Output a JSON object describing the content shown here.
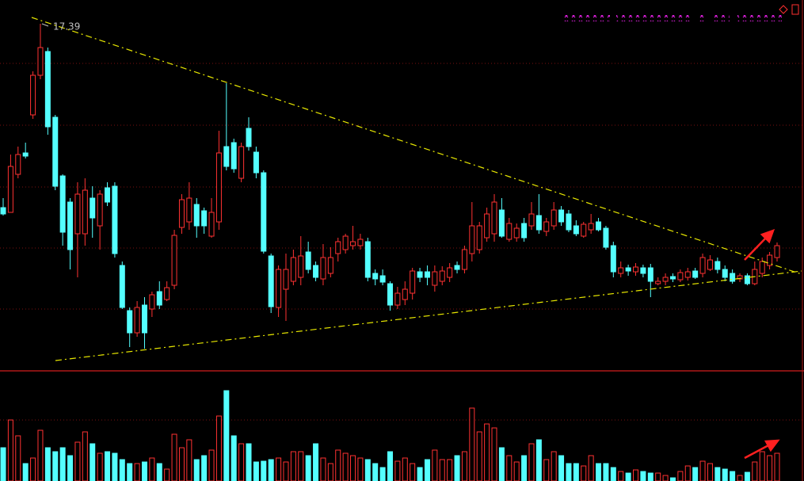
{
  "chart_data": {
    "type": "candlestick",
    "high_label": 17.39,
    "up_color": "#ff3232",
    "down_color": "#54ffff",
    "ylim": [
      13.04,
      17.69
    ],
    "volume_ylim": [
      0,
      117
    ],
    "open": [
      15.07,
      15.01,
      15.49,
      15.76,
      16.24,
      16.74,
      17.04,
      16.21,
      15.47,
      15.14,
      14.74,
      14.74,
      15.19,
      14.84,
      15.32,
      15.34,
      14.34,
      13.77,
      13.49,
      13.84,
      13.79,
      14.01,
      13.91,
      14.09,
      14.82,
      14.89,
      15.11,
      15.03,
      14.71,
      14.89,
      15.84,
      15.89,
      15.44,
      16.07,
      15.77,
      15.51,
      14.46,
      13.81,
      14.04,
      14.14,
      14.19,
      14.51,
      14.34,
      14.17,
      14.24,
      14.49,
      14.54,
      14.59,
      14.59,
      14.64,
      14.24,
      14.21,
      14.11,
      13.84,
      13.91,
      13.99,
      14.26,
      14.26,
      14.09,
      14.14,
      14.19,
      14.34,
      14.29,
      14.49,
      14.54,
      14.69,
      14.74,
      15.04,
      14.67,
      14.69,
      14.87,
      14.84,
      14.97,
      14.77,
      14.84,
      15.04,
      14.99,
      14.84,
      14.71,
      14.79,
      14.89,
      14.81,
      14.59,
      14.24,
      14.31,
      14.26,
      14.31,
      14.31,
      14.11,
      14.14,
      14.2,
      14.16,
      14.19,
      14.27,
      14.24,
      14.29,
      14.39,
      14.29,
      14.24,
      14.17,
      14.21,
      14.11,
      14.24,
      14.34,
      14.44
    ],
    "high": [
      15.19,
      15.74,
      15.84,
      15.89,
      16.79,
      17.39,
      17.09,
      16.24,
      15.49,
      15.19,
      15.39,
      15.44,
      15.34,
      15.29,
      15.39,
      15.39,
      14.39,
      13.81,
      13.89,
      13.94,
      14.01,
      14.14,
      14.14,
      14.79,
      15.24,
      15.39,
      15.19,
      15.07,
      15.19,
      16.04,
      16.64,
      15.94,
      15.89,
      16.21,
      15.84,
      15.54,
      14.49,
      14.34,
      14.49,
      14.54,
      14.71,
      14.64,
      14.39,
      14.61,
      14.57,
      14.69,
      14.74,
      14.84,
      14.74,
      14.69,
      14.29,
      14.29,
      14.14,
      14.07,
      14.14,
      14.31,
      14.31,
      14.34,
      14.34,
      14.33,
      14.37,
      14.39,
      14.59,
      15.14,
      14.89,
      15.07,
      15.24,
      15.19,
      14.94,
      14.87,
      14.94,
      15.14,
      15.24,
      14.94,
      15.14,
      15.09,
      15.04,
      14.91,
      14.89,
      14.99,
      14.94,
      14.84,
      14.64,
      14.39,
      14.35,
      14.37,
      14.35,
      14.36,
      14.19,
      14.24,
      14.24,
      14.29,
      14.31,
      14.31,
      14.49,
      14.47,
      14.44,
      14.34,
      14.29,
      14.24,
      14.24,
      14.39,
      14.44,
      14.51,
      14.63
    ],
    "low": [
      14.97,
      15.01,
      15.44,
      15.69,
      16.19,
      16.69,
      15.99,
      15.29,
      14.59,
      14.29,
      14.19,
      14.59,
      14.69,
      14.54,
      15.09,
      14.44,
      13.79,
      13.31,
      13.44,
      13.29,
      13.69,
      13.79,
      13.89,
      14.04,
      14.74,
      14.79,
      14.69,
      14.74,
      14.69,
      14.79,
      15.54,
      15.51,
      15.39,
      15.79,
      15.44,
      14.49,
      13.74,
      13.69,
      13.64,
      14.09,
      14.09,
      14.24,
      14.14,
      14.09,
      14.19,
      14.39,
      14.49,
      14.54,
      14.54,
      14.14,
      14.09,
      14.09,
      13.77,
      13.79,
      13.84,
      13.91,
      14.13,
      14.09,
      14.01,
      14.09,
      14.13,
      14.24,
      14.24,
      14.39,
      14.49,
      14.64,
      14.64,
      14.69,
      14.64,
      14.64,
      14.64,
      14.79,
      14.74,
      14.71,
      14.79,
      14.84,
      14.76,
      14.71,
      14.69,
      14.74,
      14.77,
      14.54,
      14.19,
      14.19,
      14.21,
      14.21,
      14.19,
      13.94,
      14.09,
      14.09,
      14.13,
      14.13,
      14.15,
      14.17,
      14.19,
      14.27,
      14.24,
      14.14,
      14.11,
      14.13,
      14.09,
      14.09,
      14.19,
      14.29,
      14.39
    ],
    "close": [
      14.99,
      15.59,
      15.74,
      15.72,
      16.74,
      17.09,
      16.09,
      15.34,
      14.76,
      14.54,
      15.24,
      15.29,
      14.94,
      15.24,
      15.14,
      14.49,
      13.81,
      13.49,
      13.81,
      13.49,
      13.97,
      13.84,
      14.06,
      14.72,
      15.17,
      15.19,
      14.84,
      14.84,
      15.01,
      15.76,
      15.59,
      15.56,
      15.84,
      15.84,
      15.51,
      14.52,
      13.82,
      14.29,
      14.29,
      14.44,
      14.46,
      14.29,
      14.19,
      14.44,
      14.44,
      14.64,
      14.71,
      14.64,
      14.67,
      14.19,
      14.17,
      14.13,
      13.84,
      13.99,
      14.04,
      14.27,
      14.19,
      14.19,
      14.26,
      14.27,
      14.31,
      14.29,
      14.54,
      14.84,
      14.84,
      14.99,
      15.14,
      14.71,
      14.87,
      14.81,
      14.69,
      14.99,
      14.79,
      14.89,
      15.04,
      14.89,
      14.79,
      14.74,
      14.86,
      14.87,
      14.79,
      14.57,
      14.26,
      14.31,
      14.27,
      14.32,
      14.24,
      14.14,
      14.14,
      14.19,
      14.17,
      14.25,
      14.26,
      14.19,
      14.44,
      14.41,
      14.29,
      14.19,
      14.14,
      14.21,
      14.11,
      14.29,
      14.39,
      14.47,
      14.59
    ],
    "volume": [
      42,
      77,
      57,
      22,
      29,
      64,
      42,
      37,
      42,
      32,
      49,
      62,
      47,
      35,
      37,
      35,
      27,
      22,
      22,
      24,
      29,
      22,
      15,
      59,
      42,
      52,
      27,
      32,
      39,
      82,
      114,
      57,
      47,
      47,
      24,
      25,
      27,
      29,
      24,
      37,
      37,
      32,
      47,
      29,
      22,
      39,
      35,
      32,
      29,
      27,
      22,
      17,
      37,
      25,
      29,
      22,
      17,
      27,
      39,
      27,
      27,
      32,
      37,
      92,
      62,
      72,
      67,
      42,
      32,
      24,
      32,
      47,
      52,
      27,
      37,
      32,
      22,
      22,
      19,
      32,
      22,
      22,
      17,
      12,
      10,
      14,
      12,
      10,
      10,
      7,
      4,
      12,
      19,
      17,
      25,
      22,
      17,
      15,
      12,
      7,
      11,
      24,
      37,
      32,
      35
    ]
  }
}
